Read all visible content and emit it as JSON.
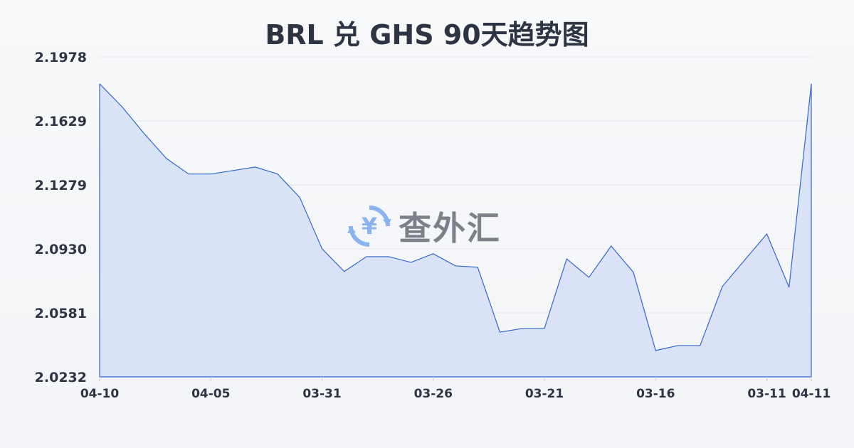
{
  "title": "BRL 兑 GHS 90天趋势图",
  "watermark": {
    "text": "查外汇",
    "icon": "yen-exchange-icon",
    "color": "#8ab4f0"
  },
  "chart_data": {
    "type": "area",
    "title": "BRL 兑 GHS 90天趋势图",
    "xlabel": "",
    "ylabel": "",
    "ylim": [
      2.0232,
      2.1978
    ],
    "yticks": [
      "2.1978",
      "2.1629",
      "2.1279",
      "2.0930",
      "2.0581",
      "2.0232"
    ],
    "xtick_labels": [
      {
        "index": 0,
        "label": "04-10"
      },
      {
        "index": 5,
        "label": "04-05"
      },
      {
        "index": 10,
        "label": "03-31"
      },
      {
        "index": 15,
        "label": "03-26"
      },
      {
        "index": 20,
        "label": "03-21"
      },
      {
        "index": 25,
        "label": "03-16"
      },
      {
        "index": 30,
        "label": "03-11"
      },
      {
        "index": 32,
        "label": "04-11"
      }
    ],
    "grid": true,
    "line_color": "#3366cc",
    "fill_color": "#d6e0f5",
    "values": [
      2.1831,
      2.1707,
      2.156,
      2.1424,
      2.1339,
      2.1339,
      2.1358,
      2.1377,
      2.1339,
      2.1211,
      2.0931,
      2.0807,
      2.0888,
      2.0888,
      2.0857,
      2.0904,
      2.0838,
      2.083,
      2.0476,
      2.0496,
      2.0496,
      2.0876,
      2.0775,
      2.0946,
      2.0803,
      2.0376,
      2.0403,
      2.0403,
      2.0725,
      2.0869,
      2.1012,
      2.0721,
      2.1831
    ]
  }
}
